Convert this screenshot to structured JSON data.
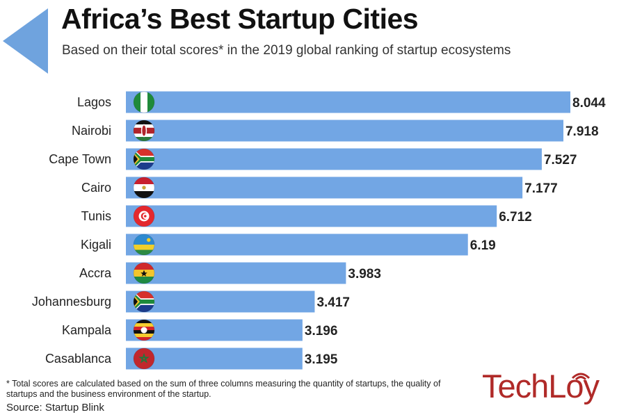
{
  "header": {
    "title": "Africa’s Best Startup Cities",
    "subtitle": "Based on their total scores* in the 2019 global ranking of startup ecosystems"
  },
  "footer": {
    "footnote": "* Total scores are calculated based on the sum of three columns measuring the quantity of startups, the quality of startups and the business environment of the startup.",
    "source": "Source: Startup Blink",
    "logo_text": "TechLoy"
  },
  "colors": {
    "bar": "#72a6e4",
    "arrow": "#6fa3de",
    "logo": "#b02a28",
    "text": "#222222"
  },
  "chart_data": {
    "type": "bar",
    "orientation": "horizontal",
    "title": "Africa’s Best Startup Cities",
    "categories": [
      "Lagos",
      "Nairobi",
      "Cape Town",
      "Cairo",
      "Tunis",
      "Kigali",
      "Accra",
      "Johannesburg",
      "Kampala",
      "Casablanca"
    ],
    "values": [
      8.044,
      7.918,
      7.527,
      7.177,
      6.712,
      6.19,
      3.983,
      3.417,
      3.196,
      3.195
    ],
    "value_labels": [
      "8.044",
      "7.918",
      "7.527",
      "7.177",
      "6.712",
      "6.19",
      "3.983",
      "3.417",
      "3.196",
      "3.195"
    ],
    "flags": [
      "nigeria-flag-icon",
      "kenya-flag-icon",
      "south-africa-flag-icon",
      "egypt-flag-icon",
      "tunisia-flag-icon",
      "rwanda-flag-icon",
      "ghana-flag-icon",
      "south-africa-flag-icon",
      "uganda-flag-icon",
      "morocco-flag-icon"
    ],
    "xlim": [
      0,
      8.044
    ],
    "grid": false,
    "legend": "none"
  }
}
